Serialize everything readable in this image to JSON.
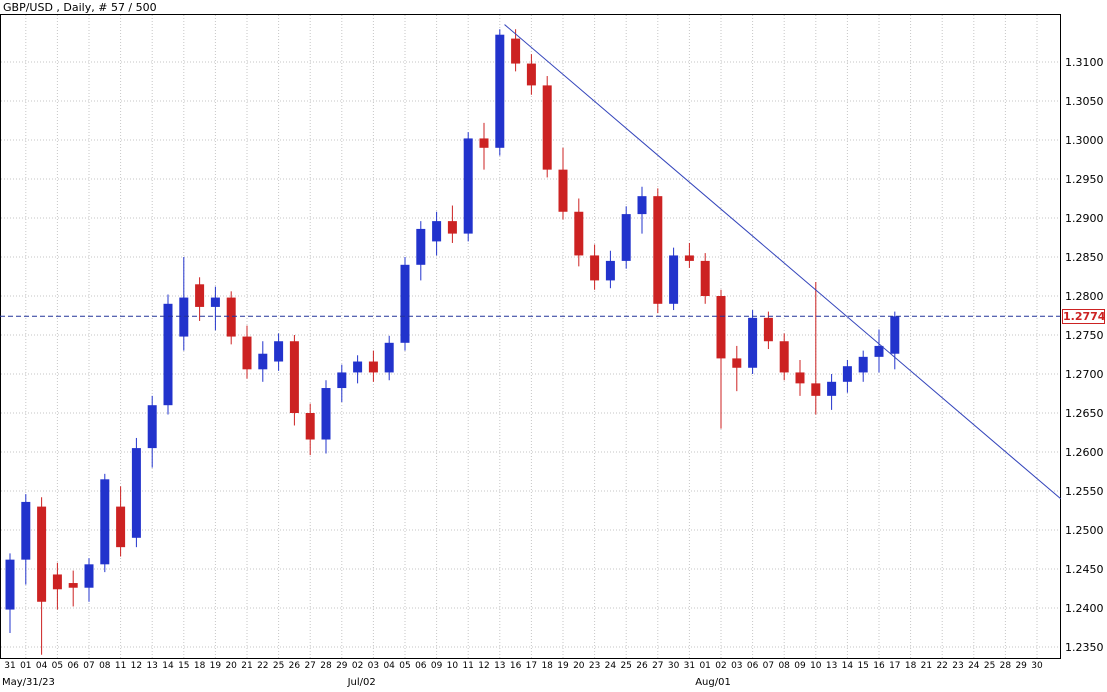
{
  "title": "GBP/USD , Daily, # 57 / 500",
  "chart_data": {
    "type": "candlestick",
    "symbol": "GBP/USD",
    "timeframe": "Daily",
    "bars_shown": 57,
    "bars_total": 500,
    "current_price": 1.2774,
    "current_price_label": "1.2774",
    "y_ticks": [
      "1.3100",
      "1.3050",
      "1.3000",
      "1.2950",
      "1.2900",
      "1.2850",
      "1.2800",
      "1.2750",
      "1.2700",
      "1.2650",
      "1.2600",
      "1.2550",
      "1.2500",
      "1.2450",
      "1.2400",
      "1.2350"
    ],
    "x_labels": [
      "31",
      "01",
      "04",
      "05",
      "06",
      "07",
      "08",
      "11",
      "12",
      "13",
      "14",
      "15",
      "18",
      "19",
      "20",
      "21",
      "22",
      "25",
      "26",
      "27",
      "28",
      "29",
      "02",
      "03",
      "04",
      "05",
      "06",
      "09",
      "10",
      "11",
      "12",
      "13",
      "16",
      "17",
      "18",
      "19",
      "20",
      "23",
      "24",
      "25",
      "26",
      "27",
      "30",
      "31",
      "01",
      "02",
      "03",
      "06",
      "07",
      "08",
      "09",
      "10",
      "13",
      "14",
      "15",
      "16",
      "17",
      "18",
      "21",
      "22",
      "23",
      "24",
      "25",
      "28",
      "29",
      "30"
    ],
    "month_markers": [
      {
        "label": "May/31/23",
        "slot": 0
      },
      {
        "label": "Jul/02",
        "slot": 22
      },
      {
        "label": "Aug/01",
        "slot": 44
      }
    ],
    "candles": [
      {
        "d": "31",
        "o": 1.2398,
        "h": 1.247,
        "l": 1.2368,
        "c": 1.2462
      },
      {
        "d": "01",
        "o": 1.2462,
        "h": 1.2546,
        "l": 1.243,
        "c": 1.2536
      },
      {
        "d": "04",
        "o": 1.253,
        "h": 1.2542,
        "l": 1.234,
        "c": 1.2408
      },
      {
        "d": "05",
        "o": 1.2443,
        "h": 1.2458,
        "l": 1.2398,
        "c": 1.2424
      },
      {
        "d": "06",
        "o": 1.2432,
        "h": 1.2448,
        "l": 1.2402,
        "c": 1.2426
      },
      {
        "d": "07",
        "o": 1.2426,
        "h": 1.2464,
        "l": 1.2408,
        "c": 1.2456
      },
      {
        "d": "08",
        "o": 1.2456,
        "h": 1.2572,
        "l": 1.2446,
        "c": 1.2565
      },
      {
        "d": "11",
        "o": 1.253,
        "h": 1.2556,
        "l": 1.2466,
        "c": 1.2478
      },
      {
        "d": "12",
        "o": 1.249,
        "h": 1.2618,
        "l": 1.2478,
        "c": 1.2605
      },
      {
        "d": "13",
        "o": 1.2605,
        "h": 1.2672,
        "l": 1.258,
        "c": 1.266
      },
      {
        "d": "14",
        "o": 1.266,
        "h": 1.2802,
        "l": 1.2648,
        "c": 1.279
      },
      {
        "d": "15",
        "o": 1.2748,
        "h": 1.285,
        "l": 1.273,
        "c": 1.2798
      },
      {
        "d": "18",
        "o": 1.2815,
        "h": 1.2824,
        "l": 1.2768,
        "c": 1.2786
      },
      {
        "d": "19",
        "o": 1.2786,
        "h": 1.2812,
        "l": 1.2756,
        "c": 1.2798
      },
      {
        "d": "20",
        "o": 1.2798,
        "h": 1.2806,
        "l": 1.2738,
        "c": 1.2748
      },
      {
        "d": "21",
        "o": 1.2748,
        "h": 1.2762,
        "l": 1.2694,
        "c": 1.2706
      },
      {
        "d": "22",
        "o": 1.2706,
        "h": 1.2742,
        "l": 1.269,
        "c": 1.2726
      },
      {
        "d": "25",
        "o": 1.2716,
        "h": 1.2752,
        "l": 1.2704,
        "c": 1.2742
      },
      {
        "d": "26",
        "o": 1.2742,
        "h": 1.275,
        "l": 1.2634,
        "c": 1.265
      },
      {
        "d": "27",
        "o": 1.265,
        "h": 1.2662,
        "l": 1.2596,
        "c": 1.2616
      },
      {
        "d": "28",
        "o": 1.2616,
        "h": 1.2692,
        "l": 1.2598,
        "c": 1.2682
      },
      {
        "d": "29",
        "o": 1.2682,
        "h": 1.2712,
        "l": 1.2664,
        "c": 1.2702
      },
      {
        "d": "02",
        "o": 1.2702,
        "h": 1.2724,
        "l": 1.2688,
        "c": 1.2716
      },
      {
        "d": "03",
        "o": 1.2716,
        "h": 1.273,
        "l": 1.269,
        "c": 1.2702
      },
      {
        "d": "04",
        "o": 1.2702,
        "h": 1.2749,
        "l": 1.2692,
        "c": 1.274
      },
      {
        "d": "05",
        "o": 1.274,
        "h": 1.285,
        "l": 1.273,
        "c": 1.284
      },
      {
        "d": "06",
        "o": 1.284,
        "h": 1.2896,
        "l": 1.282,
        "c": 1.2886
      },
      {
        "d": "09",
        "o": 1.287,
        "h": 1.2908,
        "l": 1.2852,
        "c": 1.2896
      },
      {
        "d": "10",
        "o": 1.2896,
        "h": 1.2916,
        "l": 1.2868,
        "c": 1.288
      },
      {
        "d": "11",
        "o": 1.288,
        "h": 1.301,
        "l": 1.287,
        "c": 1.3002
      },
      {
        "d": "12",
        "o": 1.3002,
        "h": 1.3022,
        "l": 1.2962,
        "c": 1.299
      },
      {
        "d": "13",
        "o": 1.299,
        "h": 1.3142,
        "l": 1.298,
        "c": 1.3135
      },
      {
        "d": "16",
        "o": 1.313,
        "h": 1.3142,
        "l": 1.3088,
        "c": 1.3098
      },
      {
        "d": "17",
        "o": 1.3098,
        "h": 1.311,
        "l": 1.3058,
        "c": 1.307
      },
      {
        "d": "18",
        "o": 1.307,
        "h": 1.3082,
        "l": 1.2952,
        "c": 1.2962
      },
      {
        "d": "19",
        "o": 1.2962,
        "h": 1.299,
        "l": 1.2898,
        "c": 1.2908
      },
      {
        "d": "20",
        "o": 1.2908,
        "h": 1.2925,
        "l": 1.2838,
        "c": 1.2852
      },
      {
        "d": "23",
        "o": 1.2852,
        "h": 1.2866,
        "l": 1.2808,
        "c": 1.282
      },
      {
        "d": "24",
        "o": 1.282,
        "h": 1.2858,
        "l": 1.281,
        "c": 1.2845
      },
      {
        "d": "25",
        "o": 1.2845,
        "h": 1.2915,
        "l": 1.2835,
        "c": 1.2905
      },
      {
        "d": "26",
        "o": 1.2905,
        "h": 1.294,
        "l": 1.288,
        "c": 1.2928
      },
      {
        "d": "27",
        "o": 1.2928,
        "h": 1.2938,
        "l": 1.2778,
        "c": 1.279
      },
      {
        "d": "30",
        "o": 1.279,
        "h": 1.2862,
        "l": 1.2782,
        "c": 1.2852
      },
      {
        "d": "31",
        "o": 1.2852,
        "h": 1.2868,
        "l": 1.2836,
        "c": 1.2845
      },
      {
        "d": "01",
        "o": 1.2845,
        "h": 1.2855,
        "l": 1.279,
        "c": 1.28
      },
      {
        "d": "02",
        "o": 1.28,
        "h": 1.2808,
        "l": 1.263,
        "c": 1.272
      },
      {
        "d": "03",
        "o": 1.272,
        "h": 1.2736,
        "l": 1.2678,
        "c": 1.2708
      },
      {
        "d": "06",
        "o": 1.2708,
        "h": 1.2782,
        "l": 1.27,
        "c": 1.2772
      },
      {
        "d": "07",
        "o": 1.2772,
        "h": 1.278,
        "l": 1.2732,
        "c": 1.2742
      },
      {
        "d": "08",
        "o": 1.2742,
        "h": 1.2752,
        "l": 1.2692,
        "c": 1.2702
      },
      {
        "d": "09",
        "o": 1.2702,
        "h": 1.2718,
        "l": 1.2672,
        "c": 1.2688
      },
      {
        "d": "10",
        "o": 1.2688,
        "h": 1.2818,
        "l": 1.2648,
        "c": 1.2672
      },
      {
        "d": "13",
        "o": 1.2672,
        "h": 1.27,
        "l": 1.2654,
        "c": 1.269
      },
      {
        "d": "14",
        "o": 1.269,
        "h": 1.2718,
        "l": 1.2676,
        "c": 1.271
      },
      {
        "d": "15",
        "o": 1.2702,
        "h": 1.273,
        "l": 1.269,
        "c": 1.2722
      },
      {
        "d": "16",
        "o": 1.2722,
        "h": 1.2757,
        "l": 1.2702,
        "c": 1.2736
      },
      {
        "d": "17",
        "o": 1.2726,
        "h": 1.278,
        "l": 1.2706,
        "c": 1.2774
      }
    ],
    "trendline": {
      "from_slot": 31.3,
      "from_price": 1.3148,
      "to_slot": 66.5,
      "to_price": 1.254
    },
    "legend_position": "none",
    "grid": true,
    "colors": {
      "bull": "#2233cc",
      "bear": "#cc2222",
      "trendline": "#3344bb",
      "price_line": "#223399",
      "grid": "#c6c6c6",
      "axis_text": "#000000",
      "tag_border": "#cc2222",
      "tag_text": "#cc2222",
      "background": "#ffffff"
    }
  }
}
